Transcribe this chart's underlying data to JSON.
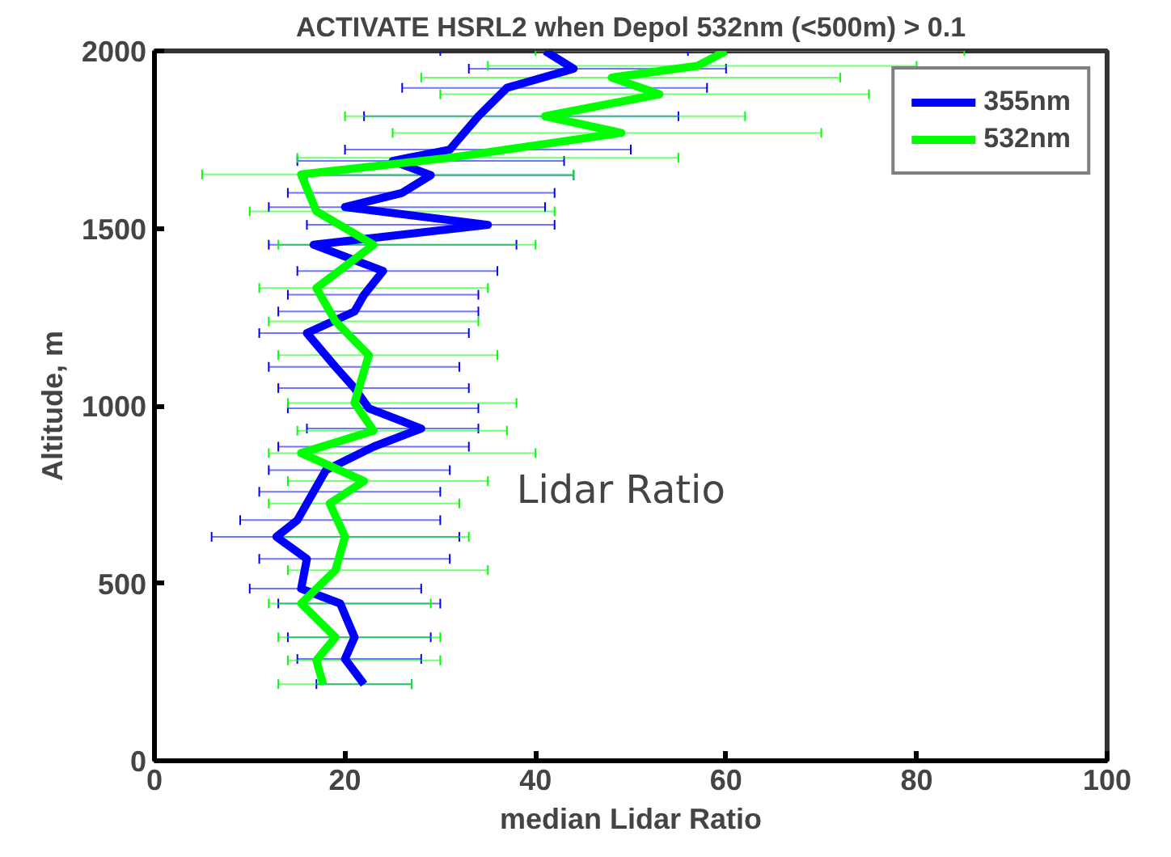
{
  "chart_data": {
    "type": "line",
    "title": "ACTIVATE HSRL2 when Depol 532nm (<500m) > 0.1",
    "xlabel": "median Lidar Ratio",
    "ylabel": "Altitude, m",
    "annotations": [
      "Lidar Ratio"
    ],
    "xlim": [
      0,
      100
    ],
    "ylim": [
      0,
      2000
    ],
    "xticks": [
      0,
      20,
      40,
      60,
      80,
      100
    ],
    "yticks": [
      0,
      500,
      1000,
      1500,
      2000
    ],
    "grid": false,
    "legend": "top right",
    "marker": "none",
    "line_style": "solid",
    "series": [
      {
        "name": "355nm",
        "color": "#0000ff",
        "x": [
          22,
          20,
          21,
          19.5,
          15.4,
          16,
          12.8,
          15,
          16.7,
          18,
          23,
          28,
          22.5,
          21,
          19,
          16,
          21,
          22,
          24,
          16.7,
          35,
          20,
          26,
          29,
          25,
          31,
          34,
          37,
          44,
          41
        ],
        "values": [
          216,
          287,
          348,
          443,
          485,
          569,
          631,
          678,
          758,
          819,
          885,
          936,
          993,
          1050,
          1110,
          1205,
          1266,
          1313,
          1380,
          1454,
          1510,
          1560,
          1600,
          1650,
          1690,
          1722,
          1816,
          1896,
          1950,
          2000
        ],
        "xerrors": [
          [
            17,
            27
          ],
          [
            15,
            28
          ],
          [
            14,
            29
          ],
          [
            13,
            30
          ],
          [
            10,
            28
          ],
          [
            11,
            31
          ],
          [
            6,
            32
          ],
          [
            9,
            30
          ],
          [
            11,
            30
          ],
          [
            12,
            31
          ],
          [
            13,
            33
          ],
          [
            16,
            34
          ],
          [
            14,
            34
          ],
          [
            13,
            33
          ],
          [
            12,
            32
          ],
          [
            11,
            33
          ],
          [
            13,
            34
          ],
          [
            14,
            34
          ],
          [
            15,
            36
          ],
          [
            12,
            38
          ],
          [
            16,
            42
          ],
          [
            12,
            41
          ],
          [
            14,
            42
          ],
          [
            16,
            44
          ],
          [
            15,
            43
          ],
          [
            20,
            50
          ],
          [
            22,
            55
          ],
          [
            26,
            58
          ],
          [
            33,
            60
          ],
          [
            30,
            56
          ]
        ]
      },
      {
        "name": "532nm",
        "color": "#00ff00",
        "x": [
          17.7,
          17,
          19,
          15.4,
          19,
          20,
          18.4,
          22,
          15.4,
          23,
          21,
          22.5,
          19,
          17,
          23,
          17,
          15.4,
          31,
          49,
          41,
          53,
          48,
          57,
          60
        ],
        "values": [
          216,
          283,
          348,
          443,
          537,
          631,
          725,
          788,
          867,
          930,
          1008,
          1143,
          1238,
          1332,
          1454,
          1548,
          1652,
          1699,
          1769,
          1816,
          1878,
          1925,
          1958,
          2000
        ],
        "xerrors": [
          [
            13,
            27
          ],
          [
            14,
            30
          ],
          [
            13,
            30
          ],
          [
            12,
            29
          ],
          [
            14,
            35
          ],
          [
            13,
            33
          ],
          [
            12,
            32
          ],
          [
            14,
            35
          ],
          [
            12,
            40
          ],
          [
            15,
            37
          ],
          [
            14,
            38
          ],
          [
            13,
            36
          ],
          [
            12,
            34
          ],
          [
            11,
            35
          ],
          [
            13,
            40
          ],
          [
            10,
            42
          ],
          [
            5,
            44
          ],
          [
            15,
            55
          ],
          [
            25,
            70
          ],
          [
            20,
            62
          ],
          [
            30,
            75
          ],
          [
            28,
            72
          ],
          [
            35,
            80
          ],
          [
            40,
            85
          ]
        ]
      }
    ]
  }
}
